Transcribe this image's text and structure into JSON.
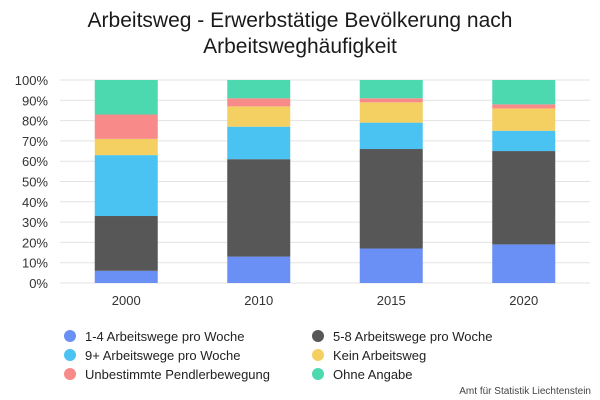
{
  "title_lines": [
    "Arbeitsweg - Erwerbstätige Bevölkerung nach",
    "Arbeitsweghäufigkeit"
  ],
  "source": "Amt für Statistik Liechtenstein",
  "chart_data": {
    "type": "bar",
    "stacked": true,
    "percent": true,
    "title": "Arbeitsweg - Erwerbstätige Bevölkerung nach Arbeitsweghäufigkeit",
    "categories": [
      "2000",
      "2010",
      "2015",
      "2020"
    ],
    "ylim": [
      0,
      100
    ],
    "yticks": [
      "0%",
      "10%",
      "20%",
      "30%",
      "40%",
      "50%",
      "60%",
      "70%",
      "80%",
      "90%",
      "100%"
    ],
    "grid": true,
    "legend_position": "bottom",
    "series": [
      {
        "name": "1-4 Arbeitswege pro Woche",
        "color": "#6a8ff5",
        "values": [
          6,
          13,
          17,
          19
        ]
      },
      {
        "name": "5-8 Arbeitswege pro Woche",
        "color": "#575757",
        "values": [
          27,
          48,
          49,
          46
        ]
      },
      {
        "name": "9+ Arbeitswege pro Woche",
        "color": "#4bc3f2",
        "values": [
          30,
          16,
          13,
          10
        ]
      },
      {
        "name": "Kein Arbeitsweg",
        "color": "#f4cf62",
        "values": [
          8,
          10,
          10,
          11
        ]
      },
      {
        "name": "Unbestimmte Pendlerbewegung",
        "color": "#f88a8a",
        "values": [
          12,
          4,
          2,
          2
        ]
      },
      {
        "name": "Ohne Angabe",
        "color": "#4dd9b0",
        "values": [
          17,
          9,
          9,
          12
        ]
      }
    ]
  }
}
